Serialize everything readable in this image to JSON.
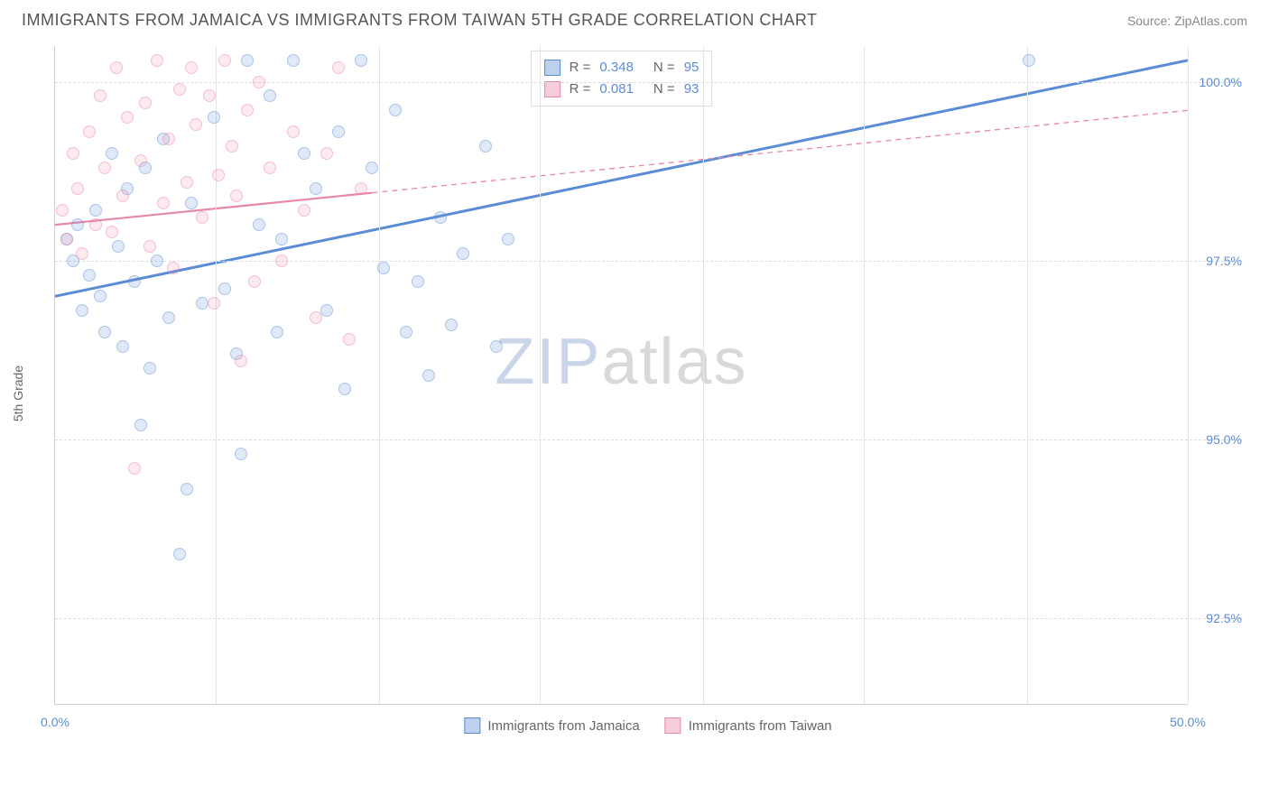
{
  "header": {
    "title": "IMMIGRANTS FROM JAMAICA VS IMMIGRANTS FROM TAIWAN 5TH GRADE CORRELATION CHART",
    "source": "Source: ZipAtlas.com"
  },
  "chart": {
    "type": "scatter",
    "y_axis_label": "5th Grade",
    "background_color": "#ffffff",
    "grid_color": "#dddddd",
    "watermark_prefix": "ZIP",
    "watermark_suffix": "atlas",
    "xlim": [
      0,
      50
    ],
    "ylim": [
      91.3,
      100.5
    ],
    "y_ticks": [
      {
        "v": 92.5,
        "label": "92.5%"
      },
      {
        "v": 95.0,
        "label": "95.0%"
      },
      {
        "v": 97.5,
        "label": "97.5%"
      },
      {
        "v": 100.0,
        "label": "100.0%"
      }
    ],
    "x_ticks": [
      {
        "v": 0,
        "label": "0.0%"
      },
      {
        "v": 50,
        "label": "50.0%"
      }
    ],
    "x_tick_positions": [
      0,
      7.1,
      14.3,
      21.4,
      28.6,
      35.7,
      42.9,
      50
    ],
    "legend_top": [
      {
        "swatch": "blue",
        "r_label": "R =",
        "r_val": "0.348",
        "n_label": "N =",
        "n_val": "95"
      },
      {
        "swatch": "pink",
        "r_label": "R =",
        "r_val": "0.081",
        "n_label": "N =",
        "n_val": "93"
      }
    ],
    "legend_bottom": [
      {
        "swatch": "blue",
        "label": "Immigrants from Jamaica"
      },
      {
        "swatch": "pink",
        "label": "Immigrants from Taiwan"
      }
    ],
    "series": [
      {
        "name": "jamaica",
        "color": "#5b8dd6",
        "marker_class": "point-blue",
        "trend": {
          "x1": 0,
          "y1": 97.0,
          "x2": 50,
          "y2": 100.3,
          "solid_until_x": 50,
          "stroke_width": 3
        },
        "points": [
          [
            0.5,
            97.8
          ],
          [
            0.8,
            97.5
          ],
          [
            1.0,
            98.0
          ],
          [
            1.2,
            96.8
          ],
          [
            1.5,
            97.3
          ],
          [
            1.8,
            98.2
          ],
          [
            2.0,
            97.0
          ],
          [
            2.2,
            96.5
          ],
          [
            2.5,
            99.0
          ],
          [
            2.8,
            97.7
          ],
          [
            3.0,
            96.3
          ],
          [
            3.2,
            98.5
          ],
          [
            3.5,
            97.2
          ],
          [
            3.8,
            95.2
          ],
          [
            4.0,
            98.8
          ],
          [
            4.2,
            96.0
          ],
          [
            4.5,
            97.5
          ],
          [
            4.8,
            99.2
          ],
          [
            5.0,
            96.7
          ],
          [
            5.5,
            93.4
          ],
          [
            5.8,
            94.3
          ],
          [
            6.0,
            98.3
          ],
          [
            6.5,
            96.9
          ],
          [
            7.0,
            99.5
          ],
          [
            7.5,
            97.1
          ],
          [
            8.0,
            96.2
          ],
          [
            8.2,
            94.8
          ],
          [
            8.5,
            100.3
          ],
          [
            9.0,
            98.0
          ],
          [
            9.5,
            99.8
          ],
          [
            9.8,
            96.5
          ],
          [
            10.0,
            97.8
          ],
          [
            10.5,
            100.3
          ],
          [
            11.0,
            99.0
          ],
          [
            11.5,
            98.5
          ],
          [
            12.0,
            96.8
          ],
          [
            12.5,
            99.3
          ],
          [
            12.8,
            95.7
          ],
          [
            13.5,
            100.3
          ],
          [
            14.0,
            98.8
          ],
          [
            14.5,
            97.4
          ],
          [
            15.0,
            99.6
          ],
          [
            15.5,
            96.5
          ],
          [
            16.0,
            97.2
          ],
          [
            16.5,
            95.9
          ],
          [
            17.0,
            98.1
          ],
          [
            17.5,
            96.6
          ],
          [
            18.0,
            97.6
          ],
          [
            19.0,
            99.1
          ],
          [
            19.5,
            96.3
          ],
          [
            20.0,
            97.8
          ],
          [
            43.0,
            100.3
          ]
        ]
      },
      {
        "name": "taiwan",
        "color": "#e888a8",
        "marker_class": "point-pink",
        "trend": {
          "x1": 0,
          "y1": 98.0,
          "x2": 50,
          "y2": 99.6,
          "solid_until_x": 14,
          "stroke_width": 2.2
        },
        "points": [
          [
            0.3,
            98.2
          ],
          [
            0.5,
            97.8
          ],
          [
            0.8,
            99.0
          ],
          [
            1.0,
            98.5
          ],
          [
            1.2,
            97.6
          ],
          [
            1.5,
            99.3
          ],
          [
            1.8,
            98.0
          ],
          [
            2.0,
            99.8
          ],
          [
            2.2,
            98.8
          ],
          [
            2.5,
            97.9
          ],
          [
            2.7,
            100.2
          ],
          [
            3.0,
            98.4
          ],
          [
            3.2,
            99.5
          ],
          [
            3.5,
            94.6
          ],
          [
            3.8,
            98.9
          ],
          [
            4.0,
            99.7
          ],
          [
            4.2,
            97.7
          ],
          [
            4.5,
            100.3
          ],
          [
            4.8,
            98.3
          ],
          [
            5.0,
            99.2
          ],
          [
            5.2,
            97.4
          ],
          [
            5.5,
            99.9
          ],
          [
            5.8,
            98.6
          ],
          [
            6.0,
            100.2
          ],
          [
            6.2,
            99.4
          ],
          [
            6.5,
            98.1
          ],
          [
            6.8,
            99.8
          ],
          [
            7.0,
            96.9
          ],
          [
            7.2,
            98.7
          ],
          [
            7.5,
            100.3
          ],
          [
            7.8,
            99.1
          ],
          [
            8.0,
            98.4
          ],
          [
            8.2,
            96.1
          ],
          [
            8.5,
            99.6
          ],
          [
            8.8,
            97.2
          ],
          [
            9.0,
            100.0
          ],
          [
            9.5,
            98.8
          ],
          [
            10.0,
            97.5
          ],
          [
            10.5,
            99.3
          ],
          [
            11.0,
            98.2
          ],
          [
            11.5,
            96.7
          ],
          [
            12.0,
            99.0
          ],
          [
            12.5,
            100.2
          ],
          [
            13.0,
            96.4
          ],
          [
            13.5,
            98.5
          ]
        ]
      }
    ]
  }
}
